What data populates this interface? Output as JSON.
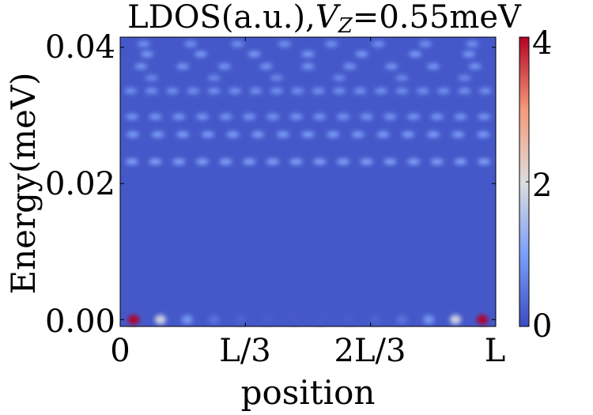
{
  "chart_data": {
    "type": "heatmap",
    "title_prefix": "LDOS(a.u.),",
    "title_var": "V",
    "title_sub": "Z",
    "title_suffix": "=0.55meV",
    "xlabel": "position",
    "ylabel": "Energy(meV)",
    "x_ticks": [
      "0",
      "L/3",
      "2L/3",
      "L"
    ],
    "x_tick_values": [
      0,
      0.3333,
      0.6667,
      1
    ],
    "y_ticks": [
      "0.00",
      "0.02",
      "0.04"
    ],
    "y_tick_values": [
      0,
      0.02,
      0.04
    ],
    "ylim": [
      -0.001,
      0.0415
    ],
    "xlim": [
      0,
      1
    ],
    "colorbar": {
      "ticks": [
        "0",
        "2",
        "4"
      ],
      "tick_values": [
        0,
        2,
        4
      ],
      "range": [
        0,
        4
      ],
      "colormap": "coolwarm"
    },
    "background_value": 0.15,
    "energy_bands": [
      {
        "energy": 0.0,
        "peak_count": 14,
        "amplitude": 4.0,
        "profile": "edge-localized"
      },
      {
        "energy": 0.0232,
        "peak_count": 16,
        "amplitude": 0.9,
        "profile": "uniform"
      },
      {
        "energy": 0.0272,
        "peak_count": 15,
        "amplitude": 0.85,
        "profile": "uniform"
      },
      {
        "energy": 0.0298,
        "peak_count": 16,
        "amplitude": 0.75,
        "profile": "uniform"
      },
      {
        "energy": 0.0336,
        "peak_count": 18,
        "amplitude": 0.7,
        "profile": "uniform"
      },
      {
        "energy": 0.0355,
        "peak_count": 6,
        "amplitude": 0.6,
        "profile": "uniform"
      },
      {
        "energy": 0.0372,
        "peak_count": 9,
        "amplitude": 0.75,
        "profile": "uniform"
      },
      {
        "energy": 0.039,
        "peak_count": 7,
        "amplitude": 0.8,
        "profile": "uniform"
      },
      {
        "energy": 0.0405,
        "peak_count": 8,
        "amplitude": 0.7,
        "profile": "uniform"
      }
    ]
  }
}
